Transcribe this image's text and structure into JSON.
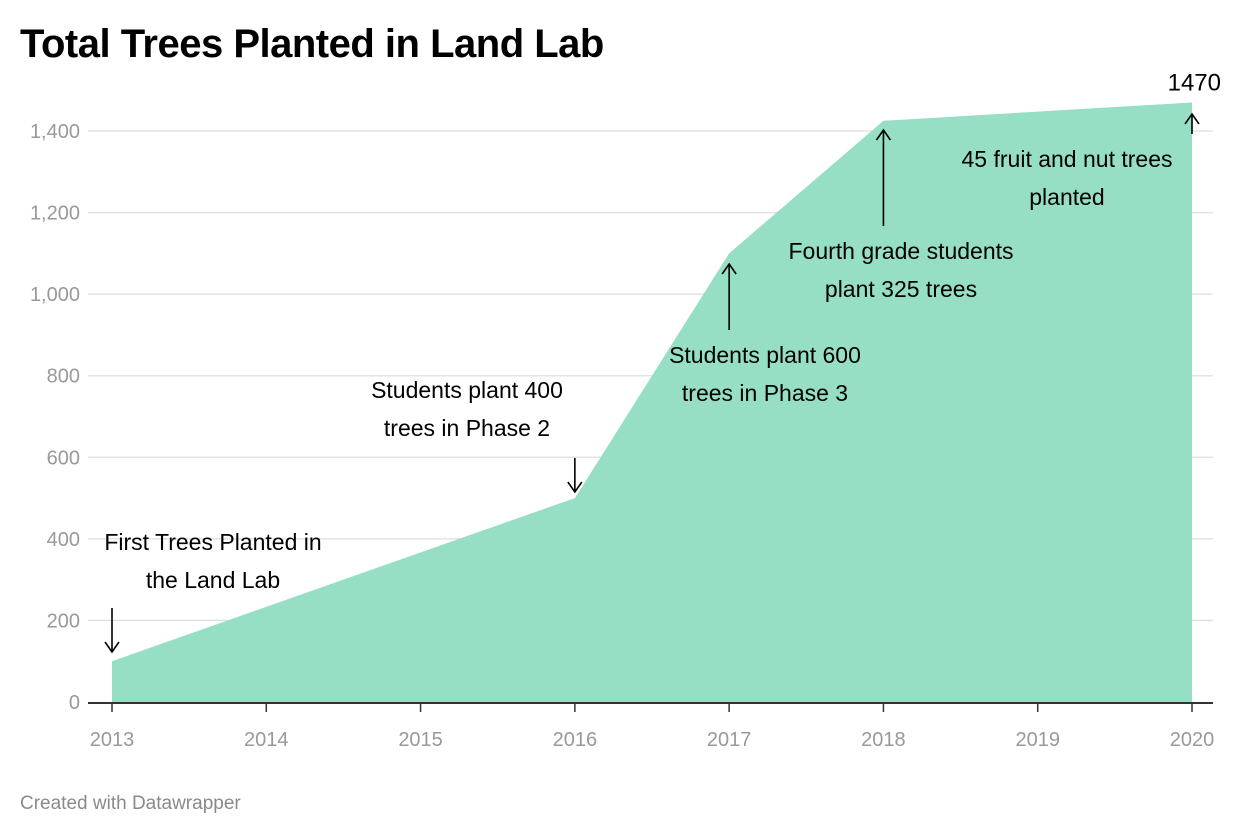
{
  "chart_data": {
    "type": "area",
    "title": "Total Trees Planted in Land Lab",
    "xlabel": "",
    "ylabel": "",
    "x": [
      2013,
      2016,
      2017,
      2018,
      2020
    ],
    "y": [
      100,
      500,
      1100,
      1425,
      1470
    ],
    "xlim": [
      2013,
      2020
    ],
    "ylim": [
      0,
      1500
    ],
    "x_ticks": [
      "2013",
      "2014",
      "2015",
      "2016",
      "2017",
      "2018",
      "2019",
      "2020"
    ],
    "y_ticks": [
      "0",
      "200",
      "400",
      "600",
      "800",
      "1,000",
      "1,200",
      "1,400"
    ],
    "grid": true,
    "legend": "none",
    "fill_color": "#96dfc5",
    "end_label": "1470",
    "annotations": [
      {
        "lines": [
          "First Trees Planted in",
          "the Land Lab"
        ],
        "x": 2013,
        "y": 100,
        "arrow": "down"
      },
      {
        "lines": [
          "Students plant 400",
          "trees in Phase 2"
        ],
        "x": 2016,
        "y": 500,
        "arrow": "down"
      },
      {
        "lines": [
          "Students plant 600",
          "trees in Phase 3"
        ],
        "x": 2017,
        "y": 1100,
        "arrow": "up"
      },
      {
        "lines": [
          "Fourth grade students",
          "plant 325 trees"
        ],
        "x": 2018,
        "y": 1425,
        "arrow": "up"
      },
      {
        "lines": [
          "45 fruit and nut trees",
          "planted"
        ],
        "x": 2020,
        "y": 1470,
        "arrow": "up"
      }
    ]
  },
  "footer": "Created with Datawrapper"
}
